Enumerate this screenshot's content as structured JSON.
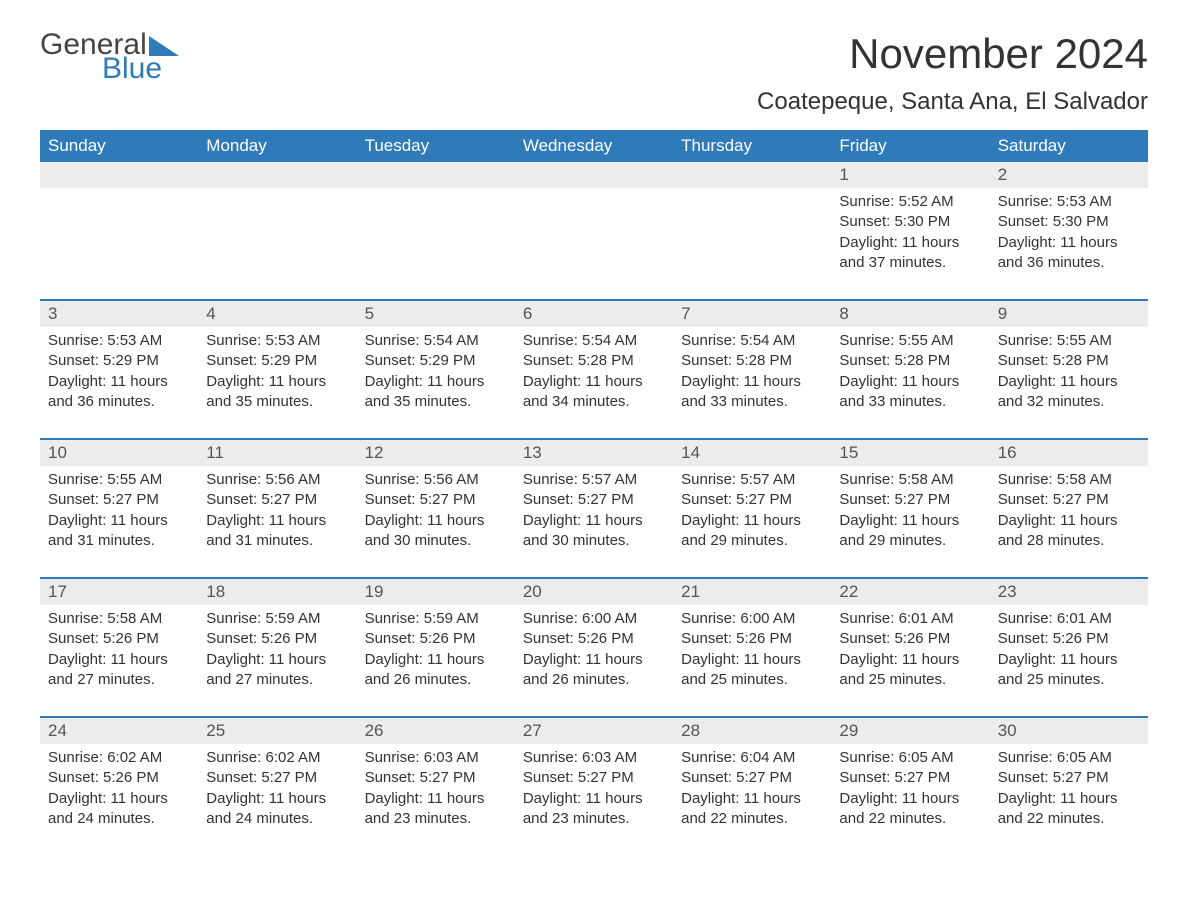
{
  "logo": {
    "text_general": "General",
    "text_blue": "Blue",
    "triangle_color": "#2f7ab8"
  },
  "title": "November 2024",
  "subtitle": "Coatepeque, Santa Ana, El Salvador",
  "colors": {
    "header_bg": "#2f7ab8",
    "header_text": "#ffffff",
    "daynum_bg": "#ececec",
    "text": "#333333",
    "rule": "#2f7ab8"
  },
  "day_headers": [
    "Sunday",
    "Monday",
    "Tuesday",
    "Wednesday",
    "Thursday",
    "Friday",
    "Saturday"
  ],
  "weeks": [
    [
      {
        "empty": true
      },
      {
        "empty": true
      },
      {
        "empty": true
      },
      {
        "empty": true
      },
      {
        "empty": true
      },
      {
        "day": "1",
        "sunrise": "Sunrise: 5:52 AM",
        "sunset": "Sunset: 5:30 PM",
        "daylight": "Daylight: 11 hours and 37 minutes."
      },
      {
        "day": "2",
        "sunrise": "Sunrise: 5:53 AM",
        "sunset": "Sunset: 5:30 PM",
        "daylight": "Daylight: 11 hours and 36 minutes."
      }
    ],
    [
      {
        "day": "3",
        "sunrise": "Sunrise: 5:53 AM",
        "sunset": "Sunset: 5:29 PM",
        "daylight": "Daylight: 11 hours and 36 minutes."
      },
      {
        "day": "4",
        "sunrise": "Sunrise: 5:53 AM",
        "sunset": "Sunset: 5:29 PM",
        "daylight": "Daylight: 11 hours and 35 minutes."
      },
      {
        "day": "5",
        "sunrise": "Sunrise: 5:54 AM",
        "sunset": "Sunset: 5:29 PM",
        "daylight": "Daylight: 11 hours and 35 minutes."
      },
      {
        "day": "6",
        "sunrise": "Sunrise: 5:54 AM",
        "sunset": "Sunset: 5:28 PM",
        "daylight": "Daylight: 11 hours and 34 minutes."
      },
      {
        "day": "7",
        "sunrise": "Sunrise: 5:54 AM",
        "sunset": "Sunset: 5:28 PM",
        "daylight": "Daylight: 11 hours and 33 minutes."
      },
      {
        "day": "8",
        "sunrise": "Sunrise: 5:55 AM",
        "sunset": "Sunset: 5:28 PM",
        "daylight": "Daylight: 11 hours and 33 minutes."
      },
      {
        "day": "9",
        "sunrise": "Sunrise: 5:55 AM",
        "sunset": "Sunset: 5:28 PM",
        "daylight": "Daylight: 11 hours and 32 minutes."
      }
    ],
    [
      {
        "day": "10",
        "sunrise": "Sunrise: 5:55 AM",
        "sunset": "Sunset: 5:27 PM",
        "daylight": "Daylight: 11 hours and 31 minutes."
      },
      {
        "day": "11",
        "sunrise": "Sunrise: 5:56 AM",
        "sunset": "Sunset: 5:27 PM",
        "daylight": "Daylight: 11 hours and 31 minutes."
      },
      {
        "day": "12",
        "sunrise": "Sunrise: 5:56 AM",
        "sunset": "Sunset: 5:27 PM",
        "daylight": "Daylight: 11 hours and 30 minutes."
      },
      {
        "day": "13",
        "sunrise": "Sunrise: 5:57 AM",
        "sunset": "Sunset: 5:27 PM",
        "daylight": "Daylight: 11 hours and 30 minutes."
      },
      {
        "day": "14",
        "sunrise": "Sunrise: 5:57 AM",
        "sunset": "Sunset: 5:27 PM",
        "daylight": "Daylight: 11 hours and 29 minutes."
      },
      {
        "day": "15",
        "sunrise": "Sunrise: 5:58 AM",
        "sunset": "Sunset: 5:27 PM",
        "daylight": "Daylight: 11 hours and 29 minutes."
      },
      {
        "day": "16",
        "sunrise": "Sunrise: 5:58 AM",
        "sunset": "Sunset: 5:27 PM",
        "daylight": "Daylight: 11 hours and 28 minutes."
      }
    ],
    [
      {
        "day": "17",
        "sunrise": "Sunrise: 5:58 AM",
        "sunset": "Sunset: 5:26 PM",
        "daylight": "Daylight: 11 hours and 27 minutes."
      },
      {
        "day": "18",
        "sunrise": "Sunrise: 5:59 AM",
        "sunset": "Sunset: 5:26 PM",
        "daylight": "Daylight: 11 hours and 27 minutes."
      },
      {
        "day": "19",
        "sunrise": "Sunrise: 5:59 AM",
        "sunset": "Sunset: 5:26 PM",
        "daylight": "Daylight: 11 hours and 26 minutes."
      },
      {
        "day": "20",
        "sunrise": "Sunrise: 6:00 AM",
        "sunset": "Sunset: 5:26 PM",
        "daylight": "Daylight: 11 hours and 26 minutes."
      },
      {
        "day": "21",
        "sunrise": "Sunrise: 6:00 AM",
        "sunset": "Sunset: 5:26 PM",
        "daylight": "Daylight: 11 hours and 25 minutes."
      },
      {
        "day": "22",
        "sunrise": "Sunrise: 6:01 AM",
        "sunset": "Sunset: 5:26 PM",
        "daylight": "Daylight: 11 hours and 25 minutes."
      },
      {
        "day": "23",
        "sunrise": "Sunrise: 6:01 AM",
        "sunset": "Sunset: 5:26 PM",
        "daylight": "Daylight: 11 hours and 25 minutes."
      }
    ],
    [
      {
        "day": "24",
        "sunrise": "Sunrise: 6:02 AM",
        "sunset": "Sunset: 5:26 PM",
        "daylight": "Daylight: 11 hours and 24 minutes."
      },
      {
        "day": "25",
        "sunrise": "Sunrise: 6:02 AM",
        "sunset": "Sunset: 5:27 PM",
        "daylight": "Daylight: 11 hours and 24 minutes."
      },
      {
        "day": "26",
        "sunrise": "Sunrise: 6:03 AM",
        "sunset": "Sunset: 5:27 PM",
        "daylight": "Daylight: 11 hours and 23 minutes."
      },
      {
        "day": "27",
        "sunrise": "Sunrise: 6:03 AM",
        "sunset": "Sunset: 5:27 PM",
        "daylight": "Daylight: 11 hours and 23 minutes."
      },
      {
        "day": "28",
        "sunrise": "Sunrise: 6:04 AM",
        "sunset": "Sunset: 5:27 PM",
        "daylight": "Daylight: 11 hours and 22 minutes."
      },
      {
        "day": "29",
        "sunrise": "Sunrise: 6:05 AM",
        "sunset": "Sunset: 5:27 PM",
        "daylight": "Daylight: 11 hours and 22 minutes."
      },
      {
        "day": "30",
        "sunrise": "Sunrise: 6:05 AM",
        "sunset": "Sunset: 5:27 PM",
        "daylight": "Daylight: 11 hours and 22 minutes."
      }
    ]
  ]
}
